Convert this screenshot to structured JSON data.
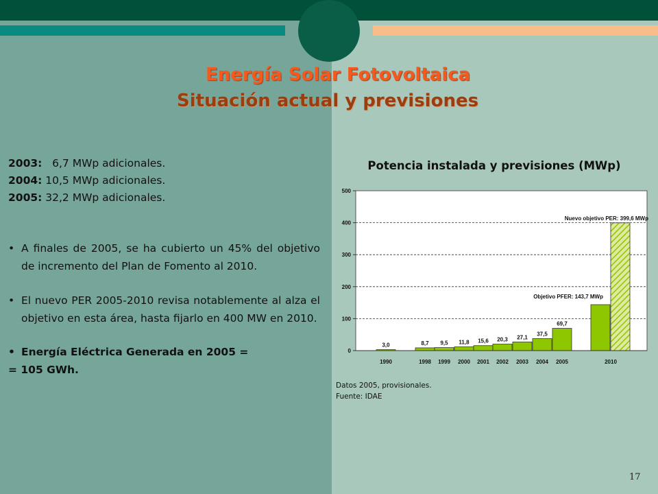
{
  "slide": {
    "title_line1": "Energía Solar Fotovoltaica",
    "title_line2": "Situación actual y previsiones",
    "page_number": "17"
  },
  "stats": [
    {
      "year": "2003:",
      "value": "6,7 MWp adicionales."
    },
    {
      "year": "2004:",
      "value": "10,5 MWp adicionales."
    },
    {
      "year": "2005:",
      "value": "32,2 MWp adicionales."
    }
  ],
  "bullets": [
    "A finales de 2005, se ha cubierto un 45% del objetivo de incremento del Plan de Fomento al 2010.",
    "El nuevo PER 2005-2010 revisa notablemente al alza el objetivo en esta área, hasta fijarlo en 400 MW en 2010."
  ],
  "bullet_bold": {
    "line1": "Energía Eléctrica Generada en 2005 =",
    "line2": "= 105 GWh."
  },
  "notes": {
    "line1": "Datos 2005, provisionales.",
    "line2": "Fuente:  IDAE"
  },
  "colors": {
    "bar_fill": "#8ec600",
    "hatch_fill": "#dfeaa0",
    "title_orange": "#f45a1e",
    "title_brown": "#9c3d10"
  },
  "chart_data": {
    "type": "bar",
    "title": "Potencia instalada y previsiones (MWp)",
    "ylim": [
      0,
      500
    ],
    "yticks": [
      0,
      100,
      200,
      300,
      400,
      500
    ],
    "grid": true,
    "categories": [
      "1990",
      "1998",
      "1999",
      "2000",
      "2001",
      "2002",
      "2003",
      "2004",
      "2005",
      "2010"
    ],
    "values": [
      3.0,
      8.7,
      9.5,
      11.8,
      15.6,
      20.3,
      27.1,
      37.5,
      69.7,
      143.7
    ],
    "value_labels": [
      "3,0",
      "8,7",
      "9,5",
      "11,8",
      "15,6",
      "20,3",
      "27,1",
      "37,5",
      "69,7",
      ""
    ],
    "projection_series": {
      "category": "2010",
      "value": 399.6,
      "style": "hatched"
    },
    "annotations": [
      {
        "text": "Nuevo objetivo PER: 399,6 MWp",
        "value": 399.6
      },
      {
        "text": "Objetivo PFER: 143,7 MWp",
        "value": 143.7
      }
    ]
  }
}
